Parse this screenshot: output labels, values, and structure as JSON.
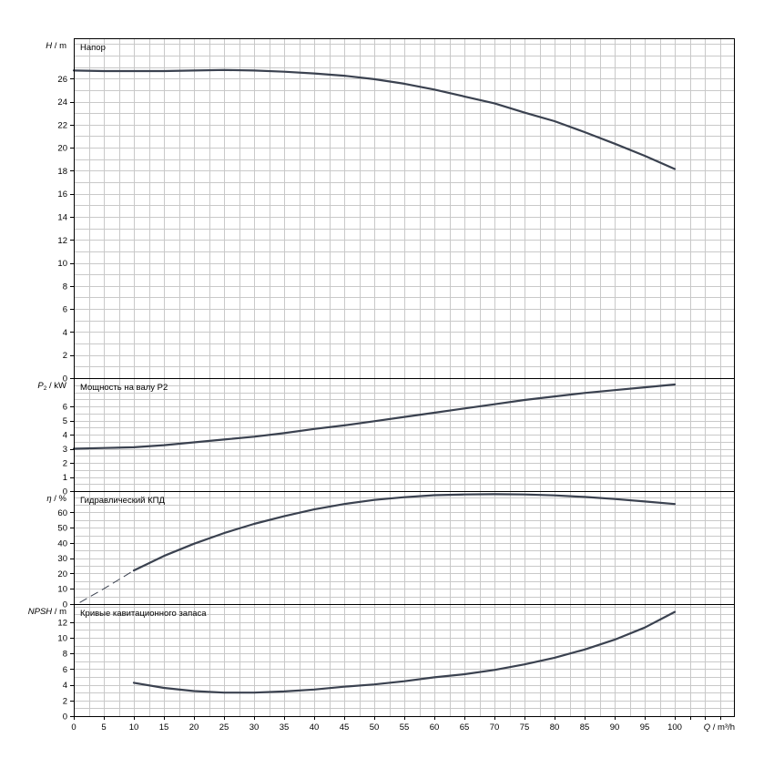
{
  "chart_data": {
    "type": "line",
    "x_axis": {
      "label_symbol": "Q",
      "label_unit": "m³/h",
      "ticks": [
        "0",
        "5",
        "10",
        "15",
        "20",
        "25",
        "30",
        "35",
        "40",
        "45",
        "50",
        "55",
        "60",
        "65",
        "70",
        "75",
        "80",
        "85",
        "90",
        "95",
        "100"
      ],
      "range": [
        0,
        110
      ]
    },
    "panels": [
      {
        "name": "Напор",
        "symbol": "H",
        "sub": "",
        "unit": "m",
        "ylim": [
          0,
          29.5
        ],
        "y_ticks": [
          0,
          2,
          4,
          6,
          8,
          10,
          12,
          14,
          16,
          18,
          20,
          22,
          24,
          26
        ],
        "series": {
          "x": [
            0,
            5,
            10,
            15,
            20,
            25,
            30,
            35,
            40,
            45,
            50,
            55,
            60,
            65,
            70,
            75,
            80,
            85,
            90,
            95,
            100
          ],
          "y": [
            26.7,
            26.65,
            26.65,
            26.65,
            26.7,
            26.75,
            26.7,
            26.6,
            26.45,
            26.25,
            25.95,
            25.55,
            25.05,
            24.45,
            23.85,
            23.05,
            22.3,
            21.35,
            20.35,
            19.3,
            18.15
          ]
        }
      },
      {
        "name": "Мощность на валу P2",
        "symbol": "P",
        "sub": "2",
        "unit": "kW",
        "ylim": [
          0,
          8
        ],
        "y_ticks": [
          0,
          1,
          2,
          3,
          4,
          5,
          6
        ],
        "series": {
          "x": [
            0,
            5,
            10,
            15,
            20,
            25,
            30,
            35,
            40,
            45,
            50,
            55,
            60,
            65,
            70,
            75,
            80,
            85,
            90,
            95,
            100
          ],
          "y": [
            3.0,
            3.05,
            3.1,
            3.25,
            3.45,
            3.65,
            3.85,
            4.1,
            4.4,
            4.65,
            4.95,
            5.25,
            5.55,
            5.85,
            6.15,
            6.45,
            6.7,
            6.95,
            7.15,
            7.35,
            7.55
          ]
        }
      },
      {
        "name": "Гидравлический КПД",
        "symbol": "η",
        "sub": "",
        "unit": "%",
        "ylim": [
          0,
          74
        ],
        "y_ticks": [
          0,
          10,
          20,
          30,
          40,
          50,
          60
        ],
        "dashed_until_x": 10,
        "series": {
          "x": [
            1,
            5,
            10,
            15,
            20,
            25,
            30,
            35,
            40,
            45,
            50,
            55,
            60,
            65,
            70,
            75,
            80,
            85,
            90,
            95,
            100
          ],
          "y": [
            1,
            10,
            22,
            31.5,
            39.5,
            46.5,
            52.5,
            57.5,
            62,
            65.5,
            68.2,
            70,
            71.3,
            71.8,
            72,
            71.8,
            71.2,
            70.2,
            68.8,
            67.2,
            65.5
          ]
        }
      },
      {
        "name": "Кривые кавитационного запаса",
        "symbol": "NPSH",
        "sub": "",
        "unit": "m",
        "ylim": [
          0,
          14.3
        ],
        "y_ticks": [
          0,
          2,
          4,
          6,
          8,
          10,
          12
        ],
        "series": {
          "x": [
            10,
            15,
            20,
            25,
            30,
            35,
            40,
            45,
            50,
            55,
            60,
            65,
            70,
            75,
            80,
            85,
            90,
            95,
            100
          ],
          "y": [
            4.25,
            3.6,
            3.2,
            3.0,
            3.0,
            3.15,
            3.4,
            3.75,
            4.05,
            4.45,
            4.95,
            5.35,
            5.9,
            6.6,
            7.45,
            8.5,
            9.75,
            11.3,
            13.3
          ]
        }
      }
    ],
    "grid": true,
    "line_color": "#3b4250"
  }
}
